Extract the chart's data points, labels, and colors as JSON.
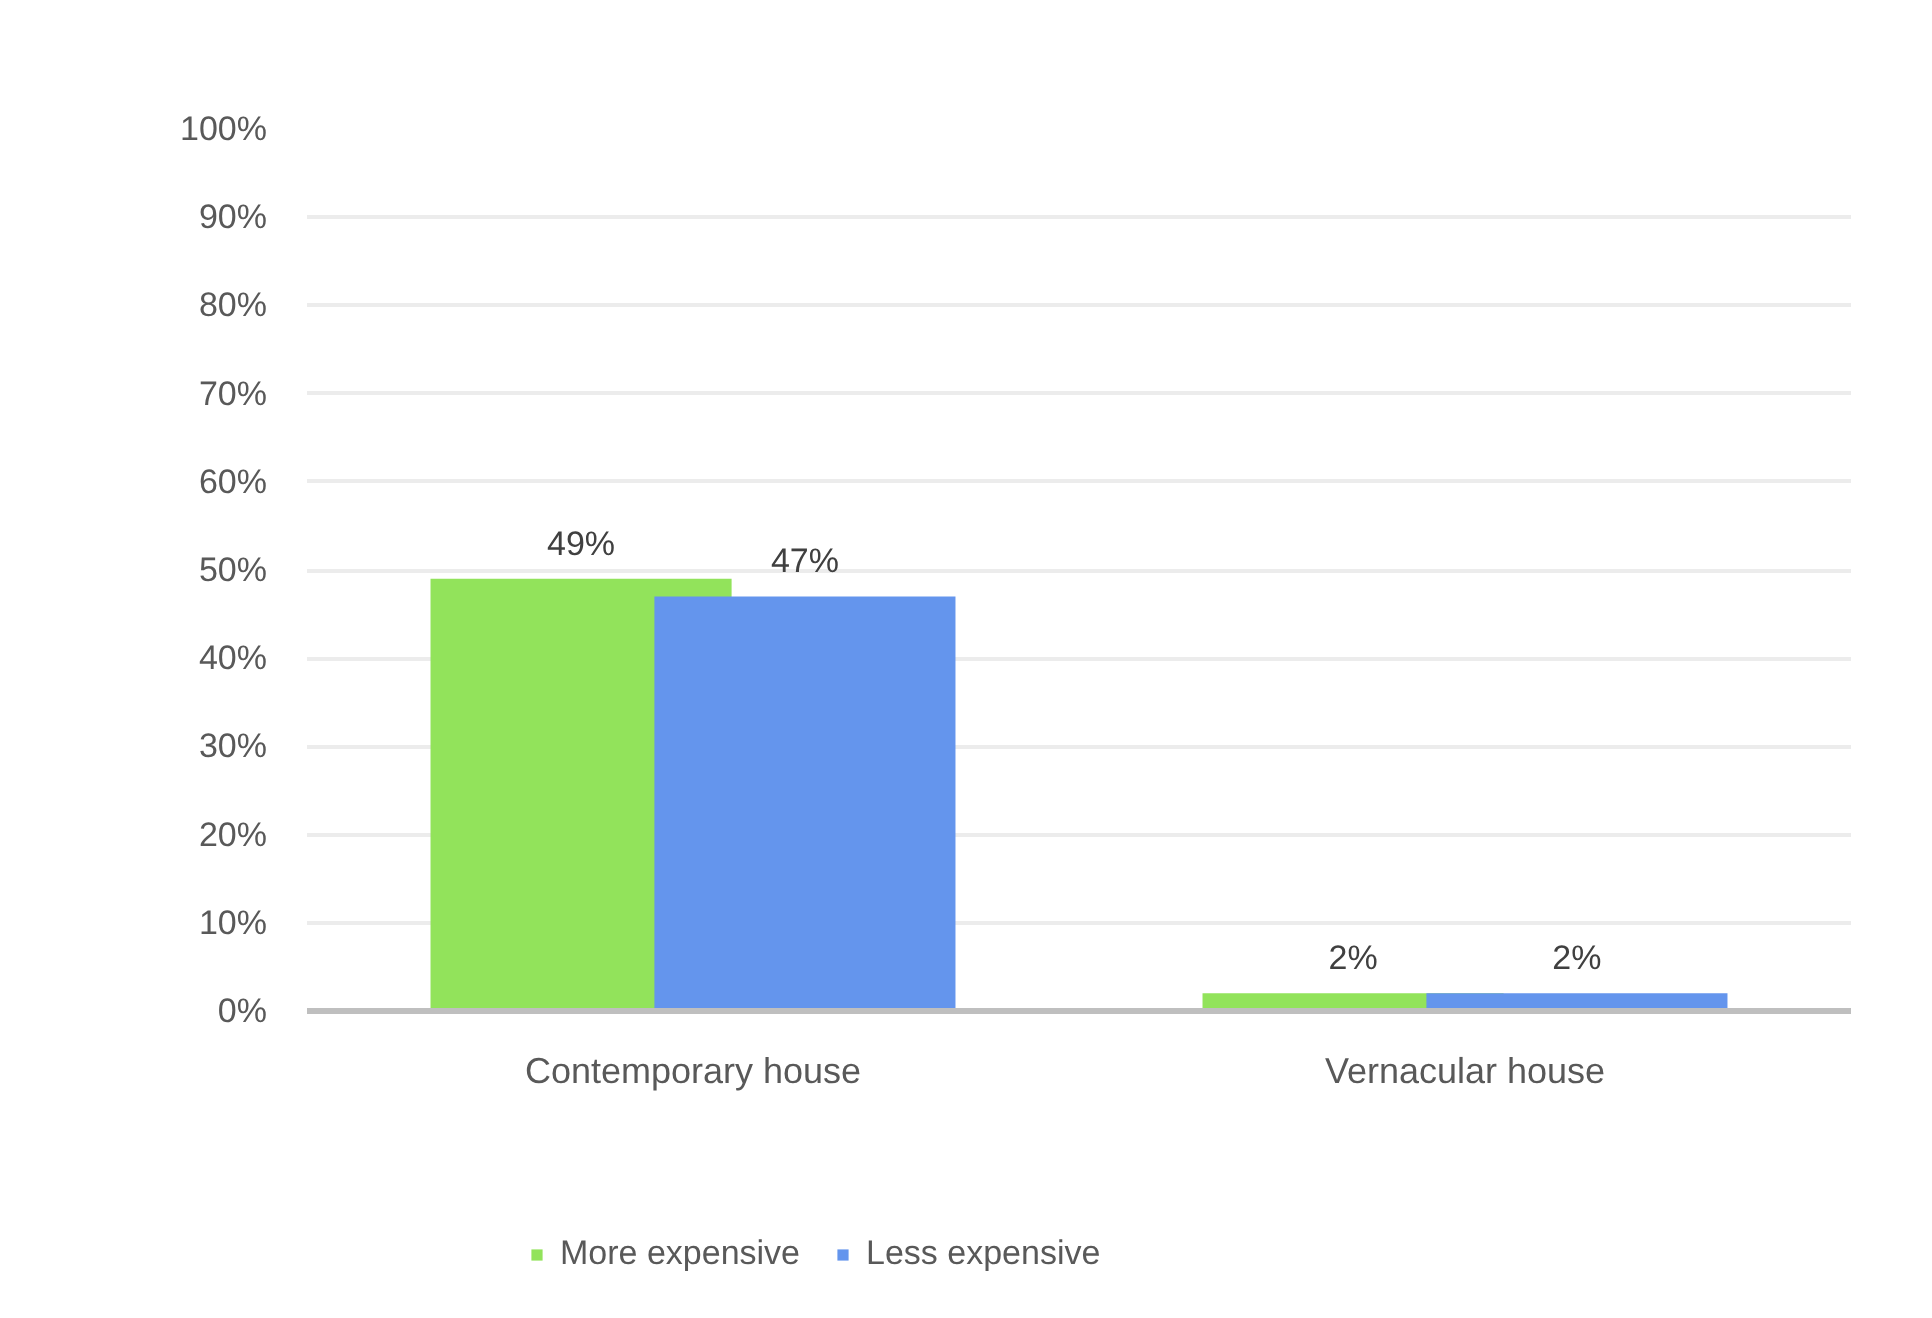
{
  "chart_data": {
    "type": "bar",
    "categories": [
      "Contemporary house",
      "Vernacular house"
    ],
    "series": [
      {
        "name": "More expensive",
        "color": "#92e35b",
        "values": [
          49,
          2
        ],
        "value_labels": [
          "49%",
          "2%"
        ]
      },
      {
        "name": "Less expensive",
        "color": "#6495ed",
        "values": [
          47,
          2
        ],
        "value_labels": [
          "47%",
          "2%"
        ]
      }
    ],
    "ylim": [
      0,
      100
    ],
    "yticks": [
      {
        "value": 0,
        "label": "0%"
      },
      {
        "value": 10,
        "label": "10%"
      },
      {
        "value": 20,
        "label": "20%"
      },
      {
        "value": 30,
        "label": "30%"
      },
      {
        "value": 40,
        "label": "40%"
      },
      {
        "value": 50,
        "label": "50%"
      },
      {
        "value": 60,
        "label": "60%"
      },
      {
        "value": 70,
        "label": "70%"
      },
      {
        "value": 80,
        "label": "80%"
      },
      {
        "value": 90,
        "label": "90%"
      },
      {
        "value": 100,
        "label": "100%"
      }
    ],
    "grid": "y",
    "legend": "bottom"
  }
}
